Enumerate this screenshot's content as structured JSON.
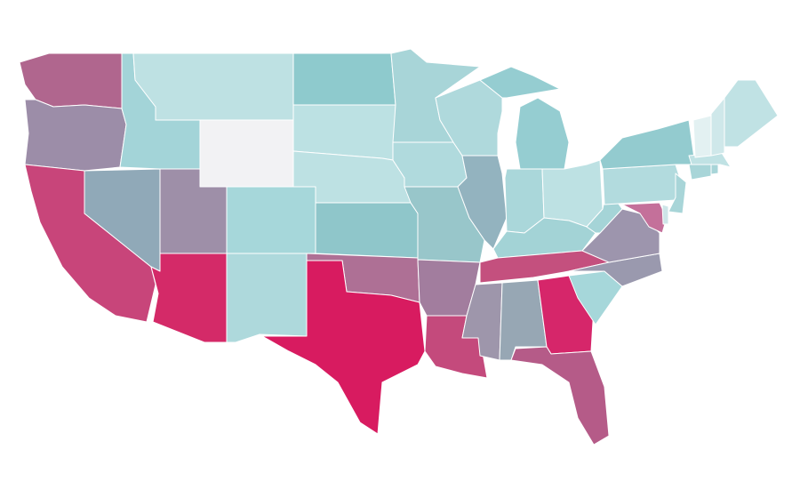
{
  "map": {
    "regions": [
      {
        "color": "#b0668e"
      },
      {
        "color": "#9c8da8"
      },
      {
        "color": "#c8457a"
      },
      {
        "color": "#90a9b8"
      },
      {
        "color": "#a3d4d8"
      },
      {
        "color": "#bee1e3"
      },
      {
        "color": "#f2f2f4"
      },
      {
        "color": "#9e8fa8"
      },
      {
        "color": "#d42a68"
      },
      {
        "color": "#a6d7da"
      },
      {
        "color": "#aed9dc"
      },
      {
        "color": "#8ecacd"
      },
      {
        "color": "#bce1e3"
      },
      {
        "color": "#bde1e3"
      },
      {
        "color": "#8fc6ca"
      },
      {
        "color": "#ae7095"
      },
      {
        "color": "#d81b60"
      },
      {
        "color": "#a8d5d8"
      },
      {
        "color": "#b0dadd"
      },
      {
        "color": "#98c6ca"
      },
      {
        "color": "#a27d9e"
      },
      {
        "color": "#c44a7c"
      },
      {
        "color": "#afd9dc"
      },
      {
        "color": "#93b3bf"
      },
      {
        "color": "#95cdd1"
      },
      {
        "color": "#95cdd1"
      },
      {
        "color": "#aad7da"
      },
      {
        "color": "#bde1e3"
      },
      {
        "color": "#a3d3d6"
      },
      {
        "color": "#c4507e"
      },
      {
        "color": "#9e96ab"
      },
      {
        "color": "#97a7b4"
      },
      {
        "color": "#d6266a"
      },
      {
        "color": "#b55b88"
      },
      {
        "color": "#a6d7da"
      },
      {
        "color": "#9a99ae"
      },
      {
        "color": "#9d95ad"
      },
      {
        "color": "#a5d4d7"
      },
      {
        "color": "#b2dbde"
      },
      {
        "color": "#93cbcf"
      },
      {
        "color": "#a8d5d8"
      },
      {
        "color": "#c4709a"
      },
      {
        "color": "#cde5e8"
      },
      {
        "color": "#a8d5d8"
      },
      {
        "color": "#a8d5d8"
      },
      {
        "color": "#c0e2e4"
      },
      {
        "color": "#e3f1f2"
      },
      {
        "color": "#cfe8ea"
      },
      {
        "color": "#c0e2e4"
      }
    ]
  }
}
